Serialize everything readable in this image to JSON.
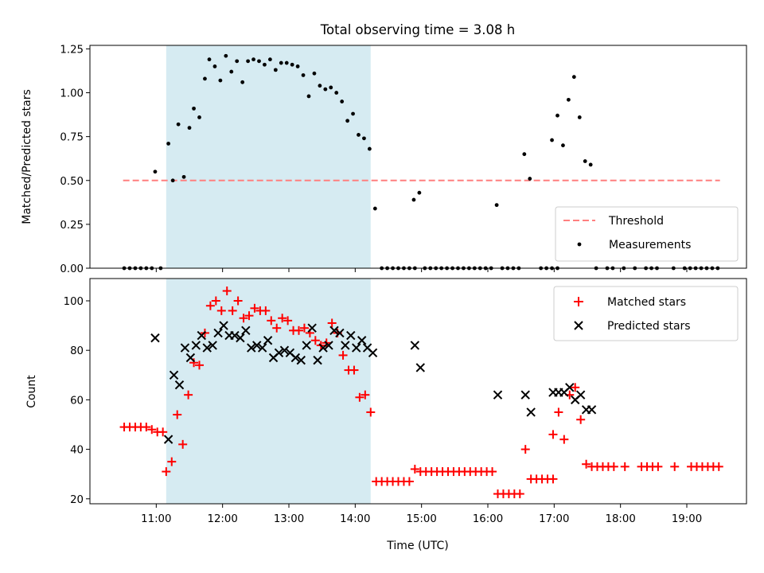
{
  "title": "Total observing time = 3.08 h",
  "colors": {
    "shade": "#add8e6",
    "threshold": "#ff7f7f",
    "matched": "#ff0000",
    "predicted": "#000000",
    "measurement": "#000000"
  },
  "shaded_interval": [
    "11:09",
    "14:14"
  ],
  "chart_data": [
    {
      "type": "scatter",
      "panel": "top",
      "xlabel": "",
      "ylabel": "Matched/Predicted stars",
      "ylim": [
        0,
        1.27
      ],
      "yticks": [
        "0.00",
        "0.25",
        "0.50",
        "0.75",
        "1.00",
        "1.25"
      ],
      "legend": [
        "Threshold",
        "Measurements"
      ],
      "legend_position": "lower-right",
      "threshold": {
        "name": "Threshold",
        "value": 0.5,
        "x_start": "10:30",
        "x_end": "19:30"
      },
      "measurements": {
        "name": "Measurements",
        "points": [
          [
            "10:31",
            0
          ],
          [
            "10:36",
            0
          ],
          [
            "10:41",
            0
          ],
          [
            "10:46",
            0
          ],
          [
            "10:51",
            0
          ],
          [
            "10:56",
            0
          ],
          [
            "11:04",
            0
          ],
          [
            "10:59",
            0.55
          ],
          [
            "11:11",
            0.71
          ],
          [
            "11:15",
            0.5
          ],
          [
            "11:20",
            0.82
          ],
          [
            "11:25",
            0.52
          ],
          [
            "11:30",
            0.8
          ],
          [
            "11:34",
            0.91
          ],
          [
            "11:39",
            0.86
          ],
          [
            "11:44",
            1.08
          ],
          [
            "11:48",
            1.19
          ],
          [
            "11:53",
            1.15
          ],
          [
            "11:58",
            1.07
          ],
          [
            "12:03",
            1.21
          ],
          [
            "12:08",
            1.12
          ],
          [
            "12:13",
            1.18
          ],
          [
            "12:18",
            1.06
          ],
          [
            "12:23",
            1.18
          ],
          [
            "12:28",
            1.19
          ],
          [
            "12:33",
            1.18
          ],
          [
            "12:38",
            1.16
          ],
          [
            "12:43",
            1.19
          ],
          [
            "12:48",
            1.13
          ],
          [
            "12:53",
            1.17
          ],
          [
            "12:58",
            1.17
          ],
          [
            "13:03",
            1.16
          ],
          [
            "13:08",
            1.15
          ],
          [
            "13:13",
            1.1
          ],
          [
            "13:18",
            0.98
          ],
          [
            "13:23",
            1.11
          ],
          [
            "13:28",
            1.04
          ],
          [
            "13:33",
            1.02
          ],
          [
            "13:38",
            1.03
          ],
          [
            "13:43",
            1.0
          ],
          [
            "13:48",
            0.95
          ],
          [
            "13:53",
            0.84
          ],
          [
            "13:58",
            0.88
          ],
          [
            "14:03",
            0.76
          ],
          [
            "14:08",
            0.74
          ],
          [
            "14:13",
            0.68
          ],
          [
            "14:18",
            0.34
          ],
          [
            "14:24",
            0
          ],
          [
            "14:29",
            0
          ],
          [
            "14:34",
            0
          ],
          [
            "14:39",
            0
          ],
          [
            "14:44",
            0
          ],
          [
            "14:49",
            0
          ],
          [
            "14:54",
            0
          ],
          [
            "14:53",
            0.39
          ],
          [
            "14:58",
            0.43
          ],
          [
            "15:03",
            0
          ],
          [
            "15:08",
            0
          ],
          [
            "15:13",
            0
          ],
          [
            "15:18",
            0
          ],
          [
            "15:23",
            0
          ],
          [
            "15:28",
            0
          ],
          [
            "15:33",
            0
          ],
          [
            "15:38",
            0
          ],
          [
            "15:43",
            0
          ],
          [
            "15:48",
            0
          ],
          [
            "15:53",
            0
          ],
          [
            "15:58",
            0
          ],
          [
            "16:03",
            0
          ],
          [
            "16:08",
            0.36
          ],
          [
            "16:13",
            0
          ],
          [
            "16:18",
            0
          ],
          [
            "16:23",
            0
          ],
          [
            "16:28",
            0
          ],
          [
            "16:33",
            0.65
          ],
          [
            "16:38",
            0.51
          ],
          [
            "16:48",
            0
          ],
          [
            "16:53",
            0
          ],
          [
            "16:58",
            0
          ],
          [
            "17:03",
            0
          ],
          [
            "16:58",
            0.73
          ],
          [
            "17:03",
            0.87
          ],
          [
            "17:08",
            0.7
          ],
          [
            "17:13",
            0.96
          ],
          [
            "17:18",
            1.09
          ],
          [
            "17:23",
            0.86
          ],
          [
            "17:28",
            0.61
          ],
          [
            "17:33",
            0.59
          ],
          [
            "17:38",
            0
          ],
          [
            "17:48",
            0
          ],
          [
            "17:53",
            0
          ],
          [
            "18:03",
            0
          ],
          [
            "18:13",
            0
          ],
          [
            "18:23",
            0
          ],
          [
            "18:28",
            0
          ],
          [
            "18:33",
            0
          ],
          [
            "18:48",
            0
          ],
          [
            "18:58",
            0
          ],
          [
            "19:03",
            0
          ],
          [
            "19:08",
            0
          ],
          [
            "19:13",
            0
          ],
          [
            "19:18",
            0
          ],
          [
            "19:23",
            0
          ],
          [
            "19:28",
            0
          ]
        ]
      }
    },
    {
      "type": "scatter",
      "panel": "bottom",
      "xlabel": "Time (UTC)",
      "ylabel": "Count",
      "ylim": [
        18,
        109
      ],
      "yticks": [
        "20",
        "40",
        "60",
        "80",
        "100"
      ],
      "xlim": [
        "10:00",
        "19:54"
      ],
      "xticks": [
        "11:00",
        "12:00",
        "13:00",
        "14:00",
        "15:00",
        "16:00",
        "17:00",
        "18:00",
        "19:00"
      ],
      "legend": [
        "Matched stars",
        "Predicted stars"
      ],
      "legend_position": "upper-right",
      "series": [
        {
          "name": "Matched stars",
          "marker": "+",
          "points": [
            [
              "10:31",
              49
            ],
            [
              "10:36",
              49
            ],
            [
              "10:41",
              49
            ],
            [
              "10:46",
              49
            ],
            [
              "10:51",
              49
            ],
            [
              "10:56",
              48
            ],
            [
              "11:01",
              47
            ],
            [
              "11:06",
              47
            ],
            [
              "11:09",
              31
            ],
            [
              "11:14",
              35
            ],
            [
              "11:19",
              54
            ],
            [
              "11:24",
              42
            ],
            [
              "11:29",
              62
            ],
            [
              "11:34",
              75
            ],
            [
              "11:39",
              74
            ],
            [
              "11:44",
              87
            ],
            [
              "11:49",
              98
            ],
            [
              "11:54",
              100
            ],
            [
              "11:59",
              96
            ],
            [
              "12:04",
              104
            ],
            [
              "12:09",
              96
            ],
            [
              "12:14",
              100
            ],
            [
              "12:19",
              93
            ],
            [
              "12:24",
              94
            ],
            [
              "12:29",
              97
            ],
            [
              "12:34",
              96
            ],
            [
              "12:39",
              96
            ],
            [
              "12:44",
              92
            ],
            [
              "12:49",
              89
            ],
            [
              "12:54",
              93
            ],
            [
              "12:59",
              92
            ],
            [
              "13:04",
              88
            ],
            [
              "13:09",
              88
            ],
            [
              "13:14",
              89
            ],
            [
              "13:19",
              87
            ],
            [
              "13:24",
              84
            ],
            [
              "13:29",
              82
            ],
            [
              "13:34",
              83
            ],
            [
              "13:39",
              91
            ],
            [
              "13:44",
              87
            ],
            [
              "13:49",
              78
            ],
            [
              "13:54",
              72
            ],
            [
              "13:59",
              72
            ],
            [
              "14:04",
              61
            ],
            [
              "14:09",
              62
            ],
            [
              "14:14",
              55
            ],
            [
              "14:19",
              27
            ],
            [
              "14:24",
              27
            ],
            [
              "14:29",
              27
            ],
            [
              "14:34",
              27
            ],
            [
              "14:39",
              27
            ],
            [
              "14:44",
              27
            ],
            [
              "14:49",
              27
            ],
            [
              "14:54",
              32
            ],
            [
              "14:59",
              31
            ],
            [
              "15:04",
              31
            ],
            [
              "15:09",
              31
            ],
            [
              "15:14",
              31
            ],
            [
              "15:19",
              31
            ],
            [
              "15:24",
              31
            ],
            [
              "15:29",
              31
            ],
            [
              "15:34",
              31
            ],
            [
              "15:39",
              31
            ],
            [
              "15:44",
              31
            ],
            [
              "15:49",
              31
            ],
            [
              "15:54",
              31
            ],
            [
              "15:59",
              31
            ],
            [
              "16:04",
              31
            ],
            [
              "16:09",
              22
            ],
            [
              "16:14",
              22
            ],
            [
              "16:19",
              22
            ],
            [
              "16:24",
              22
            ],
            [
              "16:29",
              22
            ],
            [
              "16:34",
              40
            ],
            [
              "16:39",
              28
            ],
            [
              "16:44",
              28
            ],
            [
              "16:49",
              28
            ],
            [
              "16:54",
              28
            ],
            [
              "16:59",
              28
            ],
            [
              "16:59",
              46
            ],
            [
              "17:04",
              55
            ],
            [
              "17:09",
              44
            ],
            [
              "17:14",
              62
            ],
            [
              "17:19",
              65
            ],
            [
              "17:24",
              52
            ],
            [
              "17:29",
              34
            ],
            [
              "17:34",
              33
            ],
            [
              "17:39",
              33
            ],
            [
              "17:44",
              33
            ],
            [
              "17:49",
              33
            ],
            [
              "17:54",
              33
            ],
            [
              "18:04",
              33
            ],
            [
              "18:19",
              33
            ],
            [
              "18:24",
              33
            ],
            [
              "18:29",
              33
            ],
            [
              "18:34",
              33
            ],
            [
              "18:49",
              33
            ],
            [
              "19:04",
              33
            ],
            [
              "19:09",
              33
            ],
            [
              "19:14",
              33
            ],
            [
              "19:19",
              33
            ],
            [
              "19:24",
              33
            ],
            [
              "19:29",
              33
            ]
          ]
        },
        {
          "name": "Predicted stars",
          "marker": "x",
          "points": [
            [
              "10:59",
              85
            ],
            [
              "11:11",
              44
            ],
            [
              "11:16",
              70
            ],
            [
              "11:21",
              66
            ],
            [
              "11:26",
              81
            ],
            [
              "11:31",
              77
            ],
            [
              "11:36",
              82
            ],
            [
              "11:41",
              86
            ],
            [
              "11:46",
              81
            ],
            [
              "11:51",
              82
            ],
            [
              "11:56",
              87
            ],
            [
              "12:01",
              90
            ],
            [
              "12:06",
              86
            ],
            [
              "12:11",
              86
            ],
            [
              "12:16",
              85
            ],
            [
              "12:21",
              88
            ],
            [
              "12:26",
              81
            ],
            [
              "12:31",
              82
            ],
            [
              "12:36",
              81
            ],
            [
              "12:41",
              84
            ],
            [
              "12:46",
              77
            ],
            [
              "12:51",
              79
            ],
            [
              "12:56",
              80
            ],
            [
              "13:01",
              79
            ],
            [
              "13:06",
              77
            ],
            [
              "13:11",
              76
            ],
            [
              "13:16",
              82
            ],
            [
              "13:21",
              89
            ],
            [
              "13:26",
              76
            ],
            [
              "13:31",
              81
            ],
            [
              "13:36",
              82
            ],
            [
              "13:41",
              88
            ],
            [
              "13:46",
              87
            ],
            [
              "13:51",
              82
            ],
            [
              "13:56",
              86
            ],
            [
              "14:01",
              81
            ],
            [
              "14:06",
              84
            ],
            [
              "14:11",
              81
            ],
            [
              "14:16",
              79
            ],
            [
              "14:54",
              82
            ],
            [
              "14:59",
              73
            ],
            [
              "16:09",
              62
            ],
            [
              "16:34",
              62
            ],
            [
              "16:39",
              55
            ],
            [
              "16:59",
              63
            ],
            [
              "17:04",
              63
            ],
            [
              "17:09",
              63
            ],
            [
              "17:14",
              65
            ],
            [
              "17:19",
              60
            ],
            [
              "17:24",
              62
            ],
            [
              "17:29",
              56
            ],
            [
              "17:34",
              56
            ]
          ]
        }
      ]
    }
  ]
}
